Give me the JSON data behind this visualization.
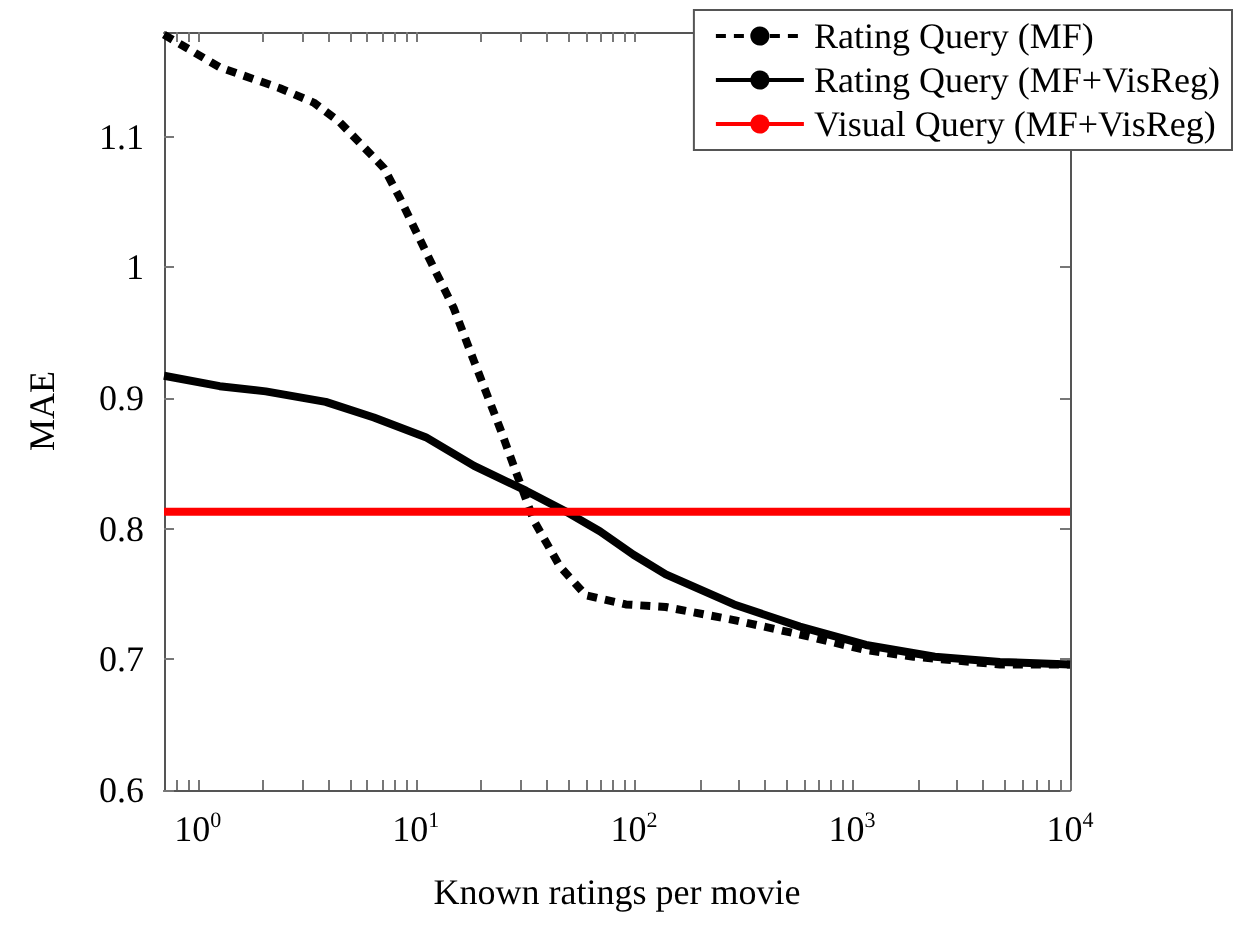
{
  "chart_data": {
    "type": "line",
    "xlabel": "Known ratings per movie",
    "ylabel": "MAE",
    "log": "x",
    "grid": false,
    "legend": "top right",
    "marker": "none",
    "xlim": [
      0.7,
      10000
    ],
    "ylim": [
      0.6,
      1.18
    ],
    "xticks": [
      {
        "value": 0.8,
        "label": null
      },
      {
        "value": 0.9,
        "label": null
      },
      {
        "value": 1,
        "label": "10$^{0}$"
      },
      {
        "value": 2,
        "label": null
      },
      {
        "value": 3,
        "label": null
      },
      {
        "value": 4,
        "label": null
      },
      {
        "value": 5,
        "label": null
      },
      {
        "value": 6,
        "label": null
      },
      {
        "value": 7,
        "label": null
      },
      {
        "value": 8,
        "label": null
      },
      {
        "value": 9,
        "label": null
      },
      {
        "value": 10,
        "label": "10$^{1}$"
      },
      {
        "value": 20,
        "label": null
      },
      {
        "value": 30,
        "label": null
      },
      {
        "value": 40,
        "label": null
      },
      {
        "value": 50,
        "label": null
      },
      {
        "value": 60,
        "label": null
      },
      {
        "value": 70,
        "label": null
      },
      {
        "value": 80,
        "label": null
      },
      {
        "value": 90,
        "label": null
      },
      {
        "value": 100,
        "label": "10$^{2}$"
      },
      {
        "value": 200,
        "label": null
      },
      {
        "value": 300,
        "label": null
      },
      {
        "value": 400,
        "label": null
      },
      {
        "value": 500,
        "label": null
      },
      {
        "value": 600,
        "label": null
      },
      {
        "value": 700,
        "label": null
      },
      {
        "value": 800,
        "label": null
      },
      {
        "value": 900,
        "label": null
      },
      {
        "value": 1000,
        "label": "10$^{3}$"
      },
      {
        "value": 2000,
        "label": null
      },
      {
        "value": 3000,
        "label": null
      },
      {
        "value": 4000,
        "label": null
      },
      {
        "value": 5000,
        "label": null
      },
      {
        "value": 6000,
        "label": null
      },
      {
        "value": 7000,
        "label": null
      },
      {
        "value": 8000,
        "label": null
      },
      {
        "value": 9000,
        "label": null
      },
      {
        "value": 10000,
        "label": "10$^{4}$"
      }
    ],
    "yticks": [
      0.6,
      0.7,
      0.8,
      0.9,
      1,
      1.1
    ],
    "series": [
      {
        "name": "Rating Query (MF)",
        "color": "#000000",
        "line_style": "dashed",
        "x": [
          0.7,
          1.26,
          2.38,
          3.4,
          4.48,
          7.13,
          8.45,
          11.1,
          14.9,
          18.5,
          24.3,
          28.7,
          34.8,
          45.8,
          60.2,
          91.9,
          140,
          288,
          577,
          1160,
          1920,
          4770,
          10000
        ],
        "values": [
          1.178,
          1.153,
          1.137,
          1.126,
          1.111,
          1.076,
          1.053,
          1.012,
          0.969,
          0.928,
          0.877,
          0.844,
          0.806,
          0.771,
          0.749,
          0.742,
          0.74,
          0.73,
          0.719,
          0.707,
          0.702,
          0.696,
          0.696
        ]
      },
      {
        "name": "Rating Query (MF+VisReg)",
        "color": "#000000",
        "line_style": "solid",
        "x": [
          0.7,
          1.26,
          2.05,
          3.86,
          6.42,
          11.1,
          18.5,
          32,
          48.8,
          69.8,
          99.6,
          140,
          288,
          577,
          1160,
          2400,
          4770,
          10000
        ],
        "values": [
          0.917,
          0.909,
          0.905,
          0.897,
          0.885,
          0.87,
          0.848,
          0.829,
          0.813,
          0.798,
          0.78,
          0.765,
          0.742,
          0.725,
          0.711,
          0.702,
          0.698,
          0.696
        ]
      },
      {
        "name": "Visual Query (MF+VisReg)",
        "color": "#ff0000",
        "line_style": "solid",
        "x": [
          0.7,
          10000
        ],
        "values": [
          0.813,
          0.813
        ]
      }
    ]
  }
}
